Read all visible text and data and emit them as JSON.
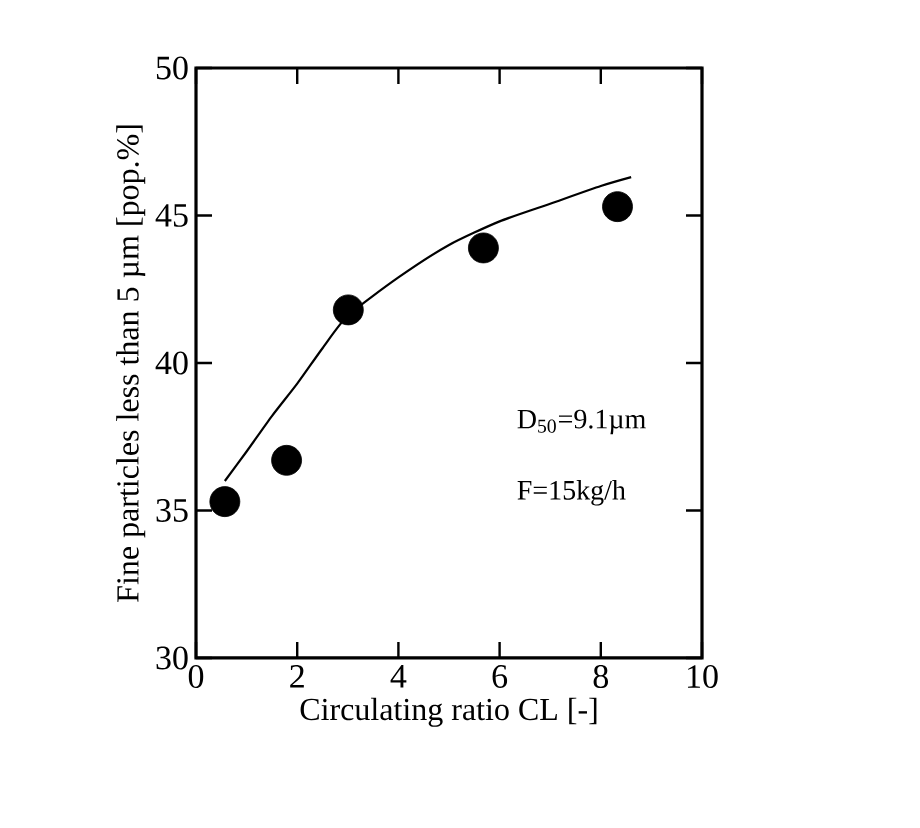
{
  "chart_data": {
    "type": "scatter",
    "xlabel": "Circulating ratio    CL [-]",
    "ylabel": "Fine particles less than 5 µm [pop.%]",
    "xlim": [
      0,
      10
    ],
    "ylim": [
      30,
      50
    ],
    "xticks": [
      0,
      2,
      4,
      6,
      8,
      10
    ],
    "yticks": [
      30,
      35,
      40,
      45,
      50
    ],
    "series": [
      {
        "color": "#000000",
        "marker": "circle",
        "x": [
          0.57,
          1.79,
          3.01,
          5.68,
          8.33
        ],
        "values": [
          35.3,
          36.7,
          41.8,
          43.9,
          45.3
        ]
      },
      {
        "type": "line",
        "color": "#000000",
        "marker": "none",
        "line_style": "solid",
        "x": [
          0.57,
          1,
          1.5,
          2,
          2.5,
          3,
          4,
          5,
          6,
          7,
          8,
          8.6
        ],
        "values": [
          36.0,
          37.0,
          38.2,
          39.3,
          40.5,
          41.6,
          42.9,
          44.0,
          44.8,
          45.4,
          46.0,
          46.3
        ]
      }
    ],
    "annotations": [
      "D$_{50}$=9.1µm",
      "F=15kg/h"
    ]
  }
}
